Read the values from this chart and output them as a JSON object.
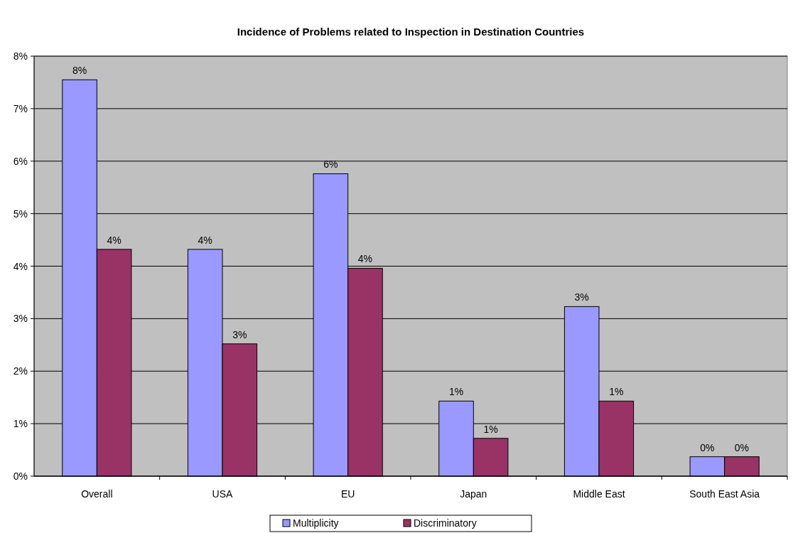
{
  "chart_data": {
    "type": "bar",
    "title": "Incidence of Problems related to Inspection in Destination Countries",
    "categories": [
      "Overall",
      "USA",
      "EU",
      "Japan",
      "Middle East",
      "South East Asia"
    ],
    "series": [
      {
        "name": "Multiplicity",
        "color": "#9999ff",
        "values": [
          7.55,
          4.32,
          5.76,
          1.43,
          3.23,
          0.37
        ],
        "value_labels": [
          "8%",
          "4%",
          "6%",
          "1%",
          "3%",
          "0%"
        ]
      },
      {
        "name": "Discriminatory",
        "color": "#993366",
        "values": [
          4.32,
          2.52,
          3.96,
          0.72,
          1.43,
          0.37
        ],
        "value_labels": [
          "4%",
          "3%",
          "4%",
          "1%",
          "1%",
          "0%"
        ]
      }
    ],
    "ylim": [
      0,
      8
    ],
    "yticks": [
      {
        "value": 0,
        "label": "0%"
      },
      {
        "value": 1,
        "label": "1%"
      },
      {
        "value": 2,
        "label": "2%"
      },
      {
        "value": 3,
        "label": "3%"
      },
      {
        "value": 4,
        "label": "4%"
      },
      {
        "value": 5,
        "label": "5%"
      },
      {
        "value": 6,
        "label": "6%"
      },
      {
        "value": 7,
        "label": "7%"
      },
      {
        "value": 8,
        "label": "8%"
      }
    ],
    "grid": "y",
    "legend": "bottom"
  }
}
